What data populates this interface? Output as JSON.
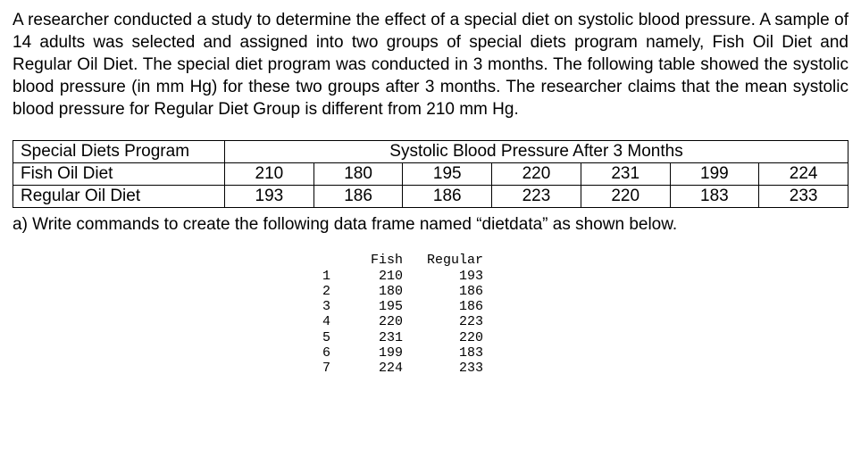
{
  "intro": "A researcher conducted a study to determine the effect of a special diet on systolic blood pressure.  A sample of 14 adults was selected and assigned into two groups of special diets program namely, Fish Oil Diet and Regular Oil Diet.  The special diet program was conducted in 3 months. The following table showed the systolic blood pressure (in mm Hg) for these two groups after 3 months.  The researcher claims that the mean systolic blood pressure for Regular Diet Group is different from 210 mm Hg.",
  "table": {
    "corner": "Special Diets Program",
    "span_header": "Systolic Blood Pressure After 3 Months",
    "rows": [
      {
        "label": "Fish Oil Diet",
        "values": [
          "210",
          "180",
          "195",
          "220",
          "231",
          "199",
          "224"
        ]
      },
      {
        "label": "Regular Oil Diet",
        "values": [
          "193",
          "186",
          "186",
          "223",
          "220",
          "183",
          "233"
        ]
      }
    ]
  },
  "question": "a)  Write commands to create the following data frame named “dietdata” as shown below.",
  "dataframe": {
    "headers": [
      "Fish",
      "Regular"
    ],
    "rows": [
      [
        "1",
        "210",
        "193"
      ],
      [
        "2",
        "180",
        "186"
      ],
      [
        "3",
        "195",
        "186"
      ],
      [
        "4",
        "220",
        "223"
      ],
      [
        "5",
        "231",
        "220"
      ],
      [
        "6",
        "199",
        "183"
      ],
      [
        "7",
        "224",
        "233"
      ]
    ]
  }
}
